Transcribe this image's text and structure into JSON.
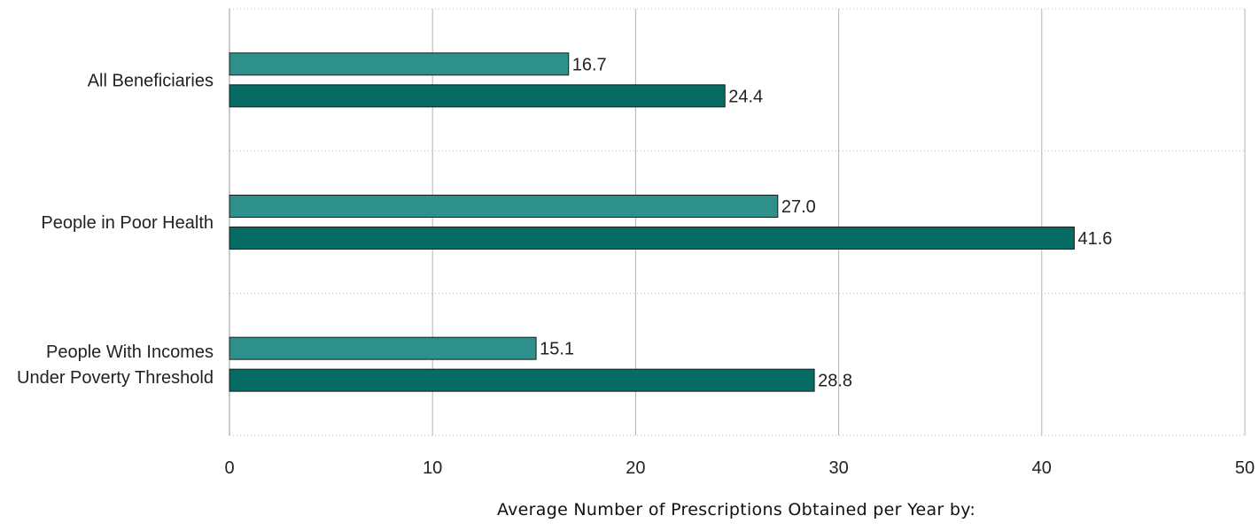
{
  "chart_data": {
    "type": "bar",
    "orientation": "horizontal",
    "categories": [
      [
        "All Beneficiaries"
      ],
      [
        "People in Poor Health"
      ],
      [
        "People With Incomes",
        "Under Poverty Threshold"
      ]
    ],
    "series": [
      {
        "color": "#2e908a",
        "values": [
          16.7,
          27.0,
          15.1
        ],
        "labels": [
          "16.7",
          "27.0",
          "15.1"
        ]
      },
      {
        "color": "#056b63",
        "values": [
          24.4,
          41.6,
          28.8
        ],
        "labels": [
          "24.4",
          "41.6",
          "28.8"
        ]
      }
    ],
    "xlim": [
      0,
      50
    ],
    "xticks": [
      0,
      10,
      20,
      30,
      40,
      50
    ],
    "xlabel": "Average Number of Prescriptions Obtained per Year by:",
    "grid": {
      "vertical": "solid",
      "horizontal": "dotted"
    },
    "legend": "none"
  }
}
